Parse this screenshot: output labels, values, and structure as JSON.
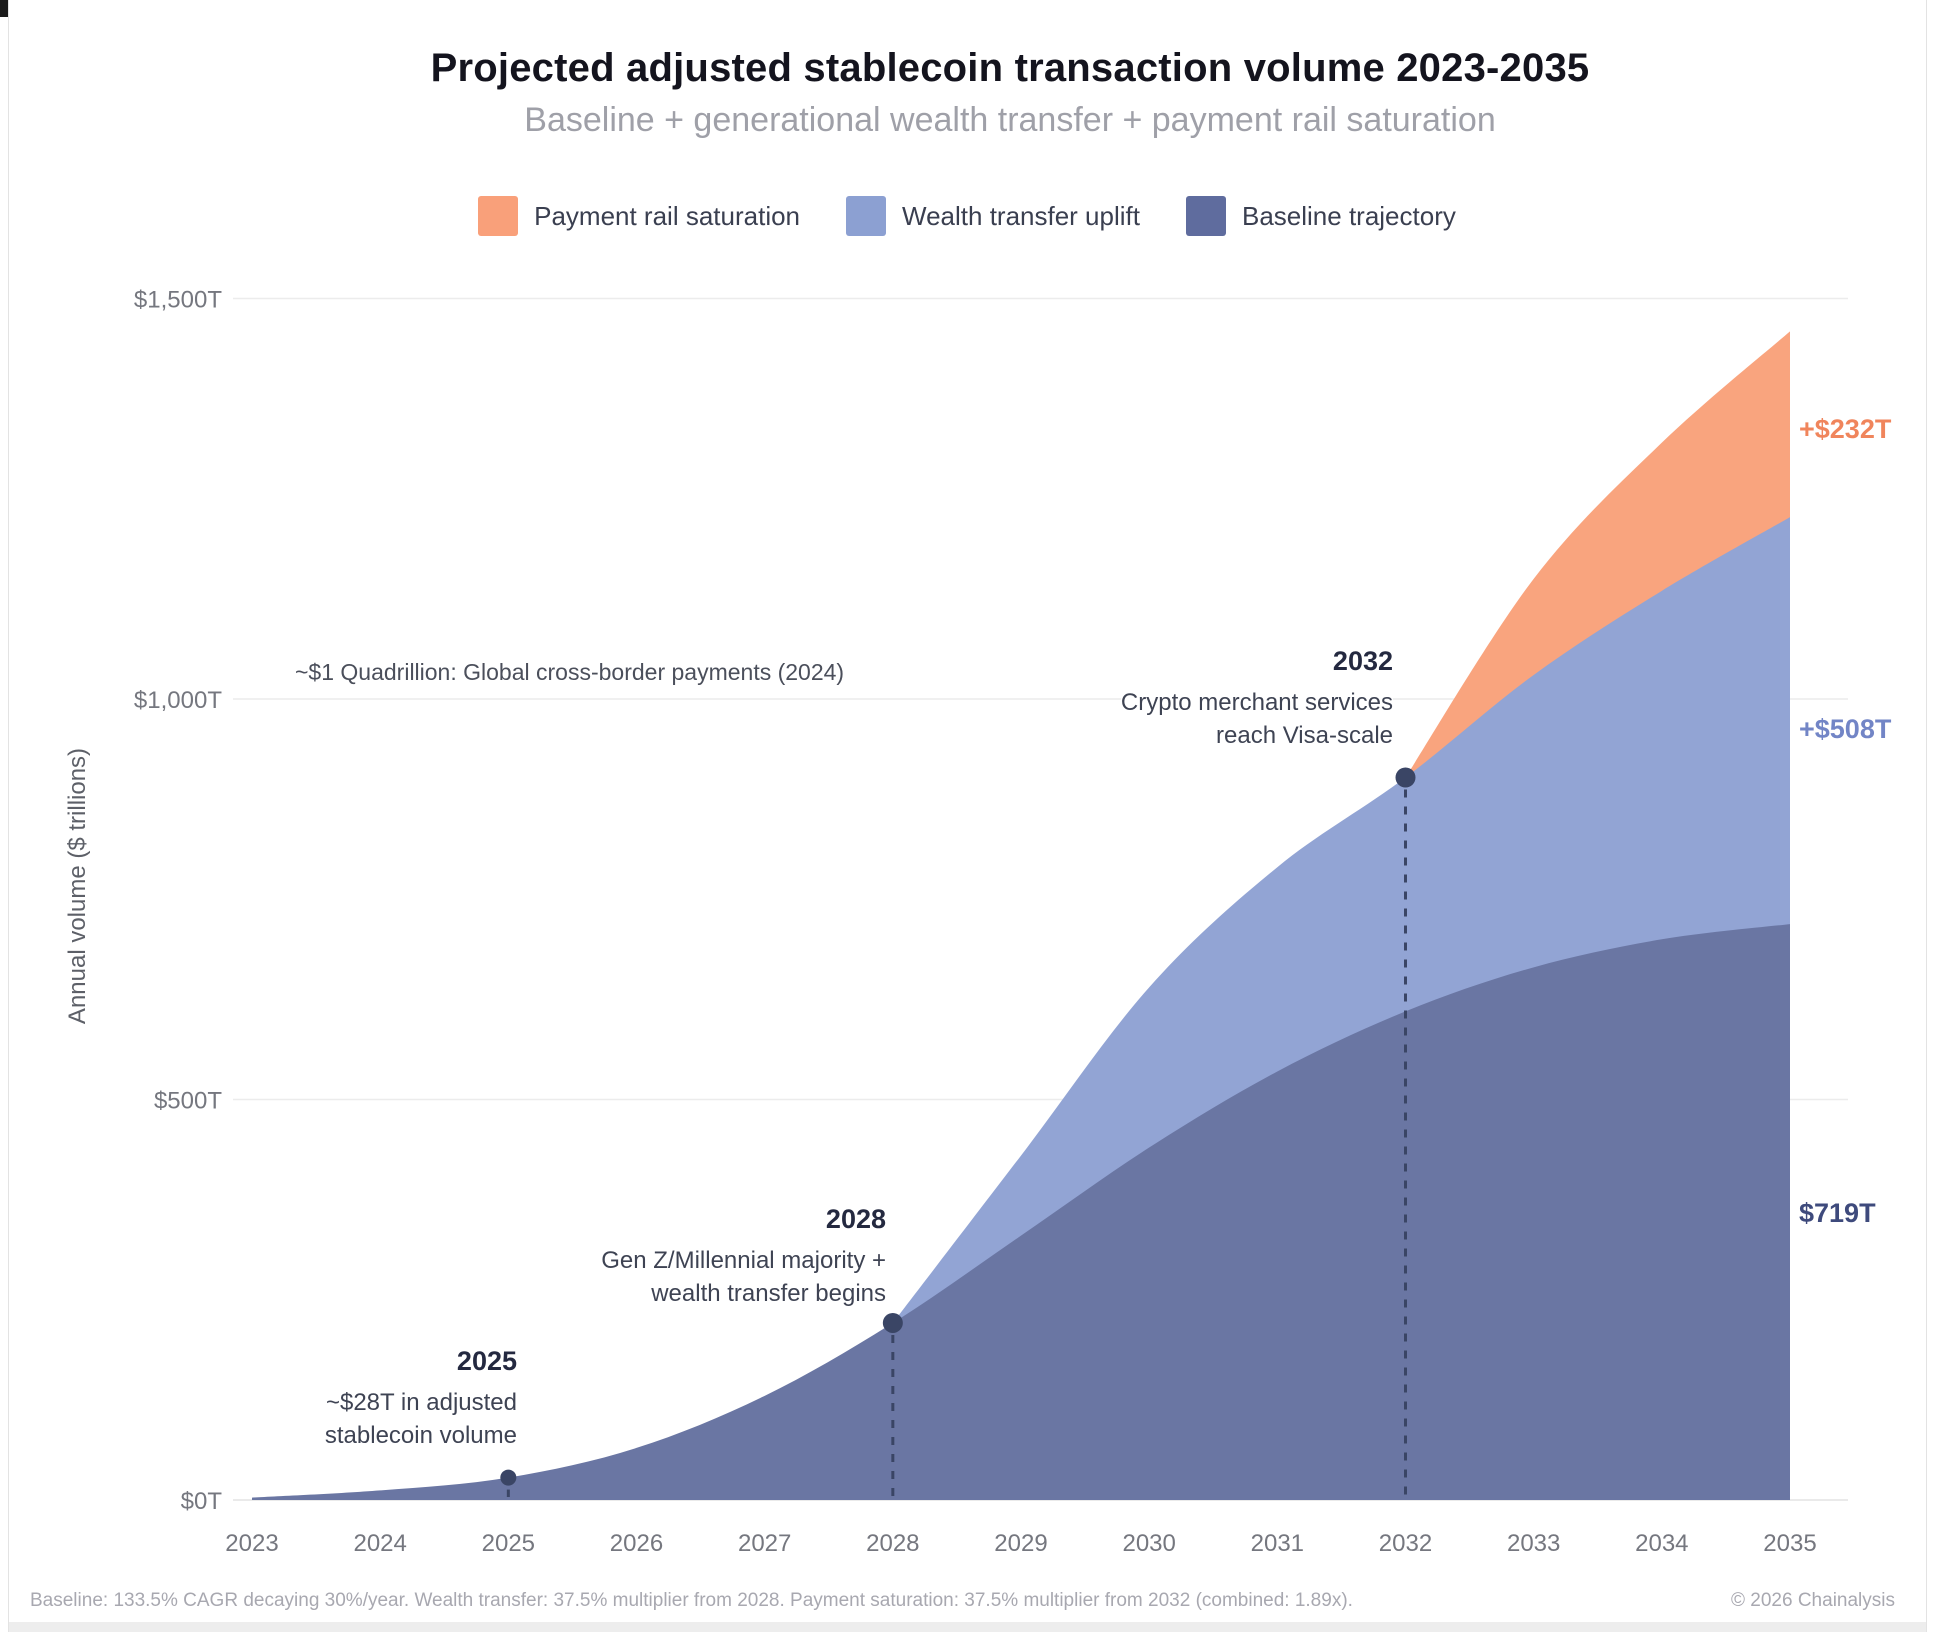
{
  "page": {
    "title": "Projected adjusted stablecoin transaction volume 2023-2035",
    "subtitle": "Baseline + generational wealth transfer + payment rail saturation",
    "footer_note": "Baseline: 133.5% CAGR decaying 30%/year. Wealth transfer: 37.5% multiplier from 2028. Payment saturation: 37.5% multiplier from 2032 (combined: 1.89x).",
    "copyright": "© 2026 Chainalysis"
  },
  "legend": {
    "items": [
      {
        "label": "Payment rail saturation",
        "color": "#f9a07a"
      },
      {
        "label": "Wealth transfer uplift",
        "color": "#8ca0d2"
      },
      {
        "label": "Baseline trajectory",
        "color": "#5f6c9e"
      }
    ]
  },
  "chart_data": {
    "type": "area",
    "stacked": true,
    "title": "Projected adjusted stablecoin transaction volume 2023-2035",
    "subtitle": "Baseline + generational wealth transfer + payment rail saturation",
    "xlabel": "",
    "ylabel": "Annual volume ($ trillions)",
    "x": [
      2023,
      2024,
      2025,
      2026,
      2027,
      2028,
      2029,
      2030,
      2031,
      2032,
      2033,
      2034,
      2035
    ],
    "ylim": [
      0,
      1560
    ],
    "grid": true,
    "legend_position": "top",
    "yticks": [
      {
        "value": 0,
        "label": "$0T"
      },
      {
        "value": 500,
        "label": "$500T"
      },
      {
        "value": 1000,
        "label": "$1,000T"
      },
      {
        "value": 1500,
        "label": "$1,500T"
      }
    ],
    "series": [
      {
        "name": "Baseline trajectory",
        "color": "#6a76a3",
        "values": [
          3,
          12,
          28,
          65,
          130,
          221,
          330,
          440,
          535,
          610,
          665,
          700,
          719
        ]
      },
      {
        "name": "Wealth transfer uplift",
        "color": "#92a4d4",
        "values": [
          0,
          0,
          0,
          0,
          0,
          0,
          100,
          200,
          255,
          292,
          365,
          435,
          508
        ]
      },
      {
        "name": "Payment rail saturation",
        "color": "#f9a47e",
        "values": [
          0,
          0,
          0,
          0,
          0,
          0,
          0,
          0,
          0,
          0,
          120,
          185,
          232
        ]
      }
    ],
    "reference_line": {
      "value": 1000,
      "label": "~$1 Quadrillion: Global cross-border payments (2024)"
    },
    "annotations": [
      {
        "year": 2025,
        "marker_value": 28,
        "title": "2025",
        "lines": [
          "~$28T in adjusted",
          "stablecoin volume"
        ]
      },
      {
        "year": 2028,
        "marker_value": 221,
        "title": "2028",
        "lines": [
          "Gen Z/Millennial majority +",
          "wealth transfer begins"
        ]
      },
      {
        "year": 2032,
        "marker_value": 902,
        "title": "2032",
        "lines": [
          "Crypto merchant services",
          "reach Visa-scale"
        ]
      }
    ],
    "end_labels": [
      {
        "text": "+$232T",
        "color": "#f0855c"
      },
      {
        "text": "+$508T",
        "color": "#7285c6"
      },
      {
        "text": "$719T",
        "color": "#3e4a7c"
      }
    ],
    "marker_color": "#3a4565"
  }
}
